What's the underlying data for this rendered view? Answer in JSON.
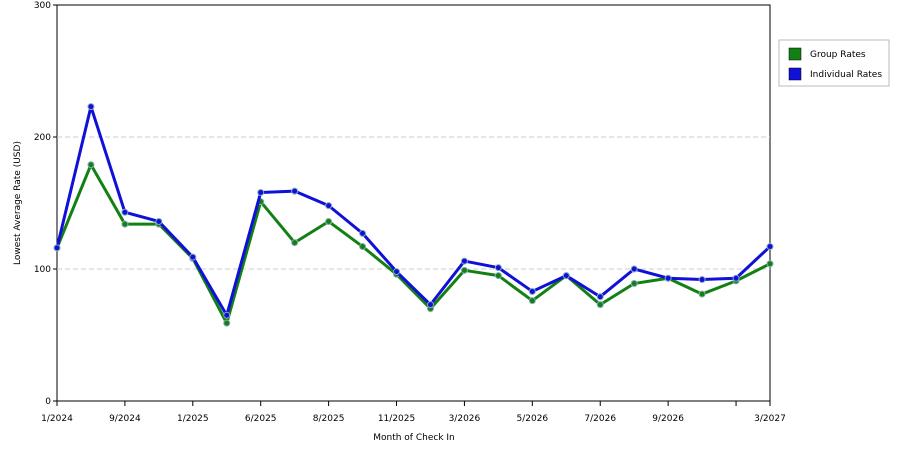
{
  "chart_data": {
    "type": "line",
    "x_label": "Month of Check In",
    "y_label": "Lowest Average Rate (USD)",
    "categories": [
      "1/2024",
      null,
      "9/2024",
      null,
      "1/2025",
      null,
      "6/2025",
      null,
      "8/2025",
      null,
      "11/2025",
      null,
      "3/2026",
      null,
      "5/2026",
      null,
      "7/2026",
      null,
      "9/2026",
      null,
      null,
      "3/2027"
    ],
    "series": [
      {
        "name": "Group Rates",
        "color": "#138013",
        "values": [
          116,
          179,
          134,
          134,
          108,
          59,
          151,
          120,
          136,
          117,
          96,
          70,
          99,
          95,
          76,
          95,
          73,
          89,
          93,
          81,
          91,
          104
        ]
      },
      {
        "name": "Individual Rates",
        "color": "#1010d8",
        "values": [
          116,
          223,
          143,
          136,
          109,
          65,
          158,
          159,
          148,
          127,
          98,
          73,
          106,
          101,
          83,
          95,
          79,
          100,
          93,
          92,
          93,
          117
        ]
      }
    ],
    "ylim": [
      0,
      300
    ],
    "yticks": [
      0,
      100,
      200,
      300
    ],
    "grid": true,
    "legend": "right"
  }
}
